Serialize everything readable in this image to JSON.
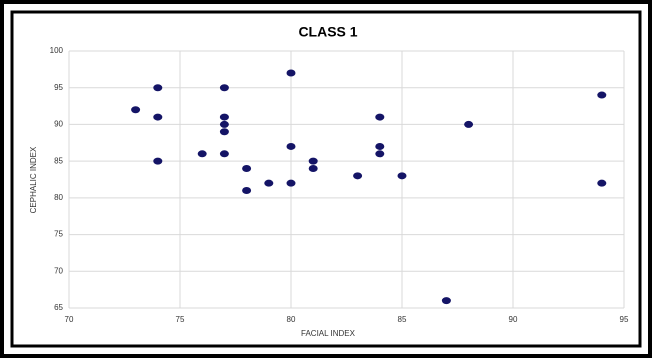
{
  "chart_data": {
    "type": "scatter",
    "title": "CLASS 1",
    "x_label": "FACIAL INDEX",
    "y_label": "CEPHALIC INDEX",
    "color": "#141466",
    "grid": true,
    "xlim": [
      70,
      95
    ],
    "xticks": [
      70,
      75,
      80,
      85,
      90,
      95
    ],
    "ylim": [
      65,
      100
    ],
    "yticks": [
      65,
      70,
      75,
      80,
      85,
      90,
      95,
      100
    ],
    "x": [
      73,
      74,
      74,
      74,
      76,
      77,
      77,
      77,
      77,
      77,
      78,
      78,
      79,
      80,
      80,
      80,
      81,
      81,
      83,
      84,
      84,
      84,
      85,
      87,
      88,
      94,
      94
    ],
    "values": [
      92,
      95,
      91,
      85,
      86,
      95,
      91,
      90,
      89,
      86,
      84,
      81,
      82,
      97,
      87,
      82,
      85,
      84,
      83,
      91,
      87,
      86,
      83,
      66,
      90,
      94,
      82
    ]
  }
}
